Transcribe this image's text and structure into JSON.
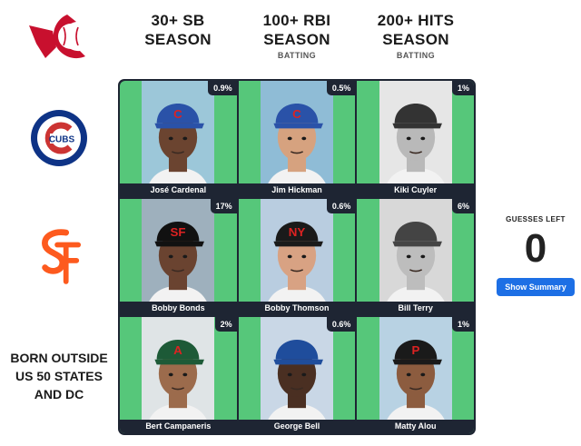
{
  "columns": [
    {
      "title_line1": "30+ SB",
      "title_line2": "SEASON",
      "sub": ""
    },
    {
      "title_line1": "100+ RBI",
      "title_line2": "SEASON",
      "sub": "BATTING"
    },
    {
      "title_line1": "200+ HITS",
      "title_line2": "SEASON",
      "sub": "BATTING"
    }
  ],
  "rows": [
    {
      "team": "Cubs",
      "logo_text": "CUBS"
    },
    {
      "team": "Giants",
      "logo_text": "SF"
    },
    {
      "line1": "BORN OUTSIDE",
      "line2": "US 50 STATES",
      "line3": "AND DC"
    }
  ],
  "cells": [
    {
      "player": "José Cardenal",
      "pct": "0.9%",
      "cap_color": "#2a52a8",
      "cap_letter": "C",
      "skin": "#6b4430",
      "bg": "#9cc7d9"
    },
    {
      "player": "Jim Hickman",
      "pct": "0.5%",
      "cap_color": "#2a52a8",
      "cap_letter": "C",
      "skin": "#d6a27f",
      "bg": "#8fbcd6"
    },
    {
      "player": "Kiki Cuyler",
      "pct": "1%",
      "cap_color": "#333333",
      "cap_letter": "",
      "skin": "#b9b9b9",
      "bg": "#e6e6e6"
    },
    {
      "player": "Bobby Bonds",
      "pct": "17%",
      "cap_color": "#111111",
      "cap_letter": "SF",
      "skin": "#6a4330",
      "bg": "#9eb0bd"
    },
    {
      "player": "Bobby Thomson",
      "pct": "0.6%",
      "cap_color": "#1a1a1a",
      "cap_letter": "NY",
      "skin": "#d8a283",
      "bg": "#b9cde0"
    },
    {
      "player": "Bill Terry",
      "pct": "6%",
      "cap_color": "#444444",
      "cap_letter": "",
      "skin": "#bdbdbd",
      "bg": "#d8d8d8"
    },
    {
      "player": "Bert Campaneris",
      "pct": "2%",
      "cap_color": "#1d5a37",
      "cap_letter": "A",
      "skin": "#9c6b4c",
      "bg": "#dfe4e6"
    },
    {
      "player": "George Bell",
      "pct": "0.6%",
      "cap_color": "#1f4d9c",
      "cap_letter": "",
      "skin": "#4a2f22",
      "bg": "#c9d7e6"
    },
    {
      "player": "Matty Alou",
      "pct": "1%",
      "cap_color": "#1a1a1a",
      "cap_letter": "P",
      "skin": "#8c5c3f",
      "bg": "#b8d2e3"
    }
  ],
  "guesses": {
    "label": "GUESSES LEFT",
    "value": "0"
  },
  "summary_button": "Show Summary",
  "colors": {
    "correct_cell": "#56c77a",
    "grid_bg": "#1e2533",
    "button": "#1d6fe5",
    "cubs_blue": "#0e3386",
    "cubs_red": "#cc3433",
    "giants_orange": "#fd5a1e"
  }
}
